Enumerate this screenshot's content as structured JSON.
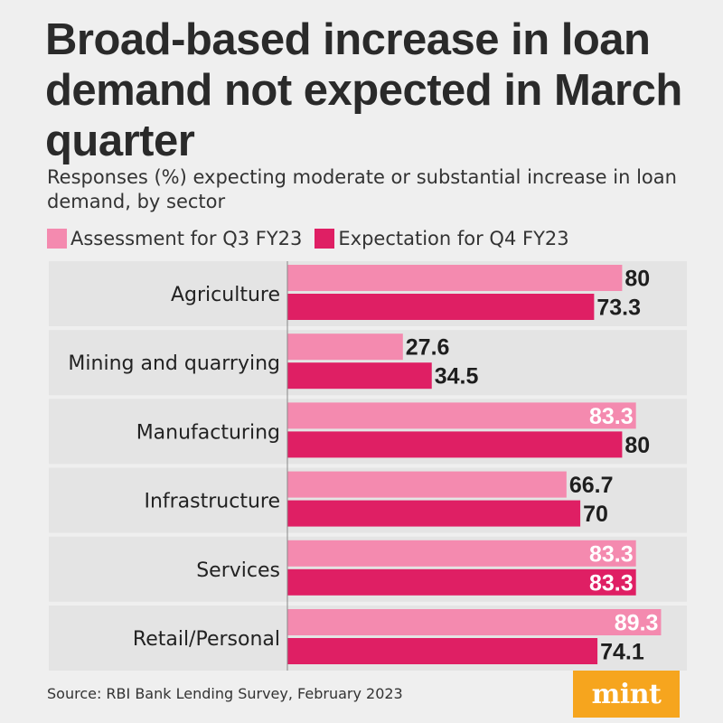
{
  "chart_data": {
    "type": "bar",
    "orientation": "horizontal",
    "title": "Broad-based increase in loan demand not expected in March quarter",
    "subtitle": "Responses (%) expecting moderate or substantial increase in loan demand, by sector",
    "categories": [
      "Agriculture",
      "Mining and quarrying",
      "Manufacturing",
      "Infrastructure",
      "Services",
      "Retail/Personal"
    ],
    "series": [
      {
        "name": "Assessment for Q3 FY23",
        "color": "#f48aaf",
        "values": [
          80,
          27.6,
          83.3,
          66.7,
          83.3,
          89.3
        ],
        "labels": [
          "80",
          "27.6",
          "83.3",
          "66.7",
          "83.3",
          "89.3"
        ]
      },
      {
        "name": "Expectation for Q4 FY23",
        "color": "#df1f64",
        "values": [
          73.3,
          34.5,
          80,
          70,
          83.3,
          74.1
        ],
        "labels": [
          "73.3",
          "34.5",
          "80",
          "70",
          "83.3",
          "74.1"
        ]
      }
    ],
    "xlim": [
      0,
      100
    ],
    "legend_position": "top",
    "grid": false
  },
  "source": "Source: RBI Bank Lending Survey, February 2023",
  "brand": {
    "logo_text": "mint",
    "logo_color": "#f6a51e"
  },
  "colors": {
    "background": "#efefef",
    "row_band": "#e4e4e4",
    "label_dark": "#1e1e1e",
    "label_light": "#ffffff"
  }
}
